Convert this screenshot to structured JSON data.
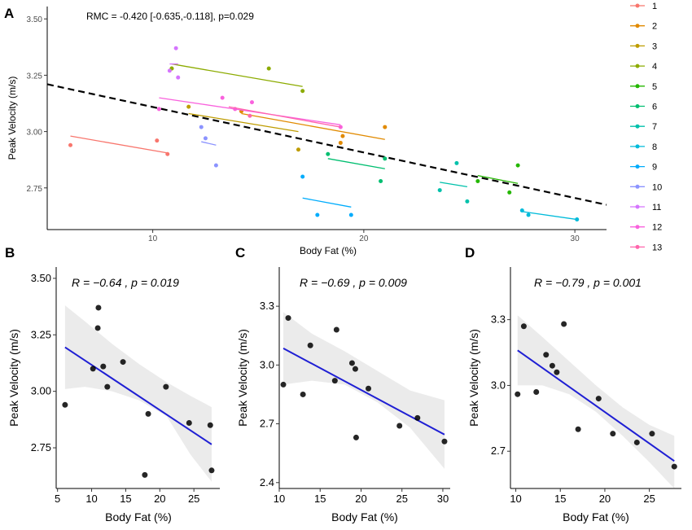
{
  "chart_data": [
    {
      "panel": "A",
      "type": "scatter",
      "title": "",
      "annotation": "RMC = -0.420 [-0.635,-0.118], p=0.029",
      "xlabel": "Body Fat (%)",
      "ylabel": "Peak Velocity (m/s)",
      "xlim": [
        5,
        31.5
      ],
      "ylim": [
        2.565,
        3.555
      ],
      "xticks": [
        "10",
        "20",
        "30"
      ],
      "yticks": [
        "2.75",
        "3.00",
        "3.25",
        "3.50"
      ],
      "grid": false,
      "legend": "right",
      "dashed_fit": {
        "x": [
          5,
          31.5
        ],
        "y": [
          3.21,
          2.675
        ]
      },
      "series": [
        {
          "name": "1",
          "color": "#F8766D",
          "points": [
            [
              6.1,
              2.94
            ],
            [
              10.2,
              2.96
            ],
            [
              10.7,
              2.9
            ]
          ],
          "fit": [
            [
              6.1,
              2.98
            ],
            [
              10.7,
              2.905
            ]
          ]
        },
        {
          "name": "2",
          "color": "#E18A00",
          "points": [
            [
              14.2,
              3.09
            ],
            [
              18.9,
              2.95
            ],
            [
              19.0,
              2.98
            ],
            [
              21.0,
              3.02
            ]
          ],
          "fit": [
            [
              14.2,
              3.08
            ],
            [
              21.0,
              2.965
            ]
          ]
        },
        {
          "name": "3",
          "color": "#BE9C00",
          "points": [
            [
              10.9,
              3.28
            ],
            [
              11.7,
              3.11
            ],
            [
              16.9,
              2.92
            ]
          ],
          "fit": [
            [
              11.7,
              3.08
            ],
            [
              16.9,
              3.0
            ]
          ]
        },
        {
          "name": "4",
          "color": "#8CAB00",
          "points": [
            [
              10.9,
              3.28
            ],
            [
              15.5,
              3.28
            ],
            [
              17.1,
              3.18
            ]
          ],
          "fit": [
            [
              10.9,
              3.3
            ],
            [
              17.1,
              3.2
            ]
          ]
        },
        {
          "name": "5",
          "color": "#24B700",
          "points": [
            [
              25.4,
              2.78
            ],
            [
              26.9,
              2.73
            ],
            [
              27.3,
              2.85
            ]
          ],
          "fit": [
            [
              25.4,
              2.805
            ],
            [
              27.3,
              2.77
            ]
          ]
        },
        {
          "name": "6",
          "color": "#00BE70",
          "points": [
            [
              18.3,
              2.9
            ],
            [
              20.8,
              2.78
            ],
            [
              21.0,
              2.88
            ]
          ],
          "fit": [
            [
              18.3,
              2.88
            ],
            [
              21.0,
              2.835
            ]
          ]
        },
        {
          "name": "7",
          "color": "#00C1AB",
          "points": [
            [
              23.6,
              2.74
            ],
            [
              24.4,
              2.86
            ],
            [
              24.9,
              2.69
            ]
          ],
          "fit": [
            [
              23.6,
              2.775
            ],
            [
              24.9,
              2.755
            ]
          ]
        },
        {
          "name": "8",
          "color": "#00BBDA",
          "points": [
            [
              27.5,
              2.65
            ],
            [
              27.8,
              2.63
            ],
            [
              30.1,
              2.61
            ]
          ],
          "fit": [
            [
              27.5,
              2.645
            ],
            [
              30.1,
              2.61
            ]
          ]
        },
        {
          "name": "9",
          "color": "#00ACFC",
          "points": [
            [
              17.1,
              2.8
            ],
            [
              17.8,
              2.63
            ],
            [
              19.4,
              2.63
            ]
          ],
          "fit": [
            [
              17.1,
              2.705
            ],
            [
              19.4,
              2.665
            ]
          ]
        },
        {
          "name": "10",
          "color": "#8B93FF",
          "points": [
            [
              12.3,
              3.02
            ],
            [
              12.5,
              2.97
            ],
            [
              13.0,
              2.85
            ]
          ],
          "fit": [
            [
              12.3,
              2.955
            ],
            [
              13.0,
              2.94
            ]
          ]
        },
        {
          "name": "11",
          "color": "#D575FE",
          "points": [
            [
              10.8,
              3.27
            ],
            [
              11.1,
              3.37
            ],
            [
              11.2,
              3.24
            ]
          ],
          "fit": [
            [
              10.8,
              3.3
            ],
            [
              11.2,
              3.3
            ]
          ]
        },
        {
          "name": "12",
          "color": "#F962DD",
          "points": [
            [
              10.3,
              3.1
            ],
            [
              13.3,
              3.15
            ],
            [
              13.9,
              3.1
            ],
            [
              14.7,
              3.13
            ],
            [
              18.9,
              3.02
            ]
          ],
          "fit": [
            [
              10.3,
              3.15
            ],
            [
              18.9,
              3.03
            ]
          ]
        },
        {
          "name": "13",
          "color": "#FF65AC",
          "points": [
            [
              14.6,
              3.07
            ]
          ],
          "fit": [
            [
              13.6,
              3.11
            ],
            [
              18.9,
              3.02
            ]
          ]
        }
      ]
    },
    {
      "panel": "B",
      "type": "scatter",
      "annotation": "R = −0.64 , p = 0.019",
      "xlabel": "Body Fat (%)",
      "ylabel": "Peak Velocity (m/s)",
      "xlim": [
        4.8,
        28.8
      ],
      "ylim": [
        2.57,
        3.55
      ],
      "xticks": [
        "5",
        "10",
        "15",
        "20",
        "25"
      ],
      "yticks": [
        "2.75",
        "3.00",
        "3.25",
        "3.50"
      ],
      "points": [
        [
          6.1,
          2.94
        ],
        [
          10.2,
          3.1
        ],
        [
          10.9,
          3.28
        ],
        [
          11.0,
          3.37
        ],
        [
          11.7,
          3.11
        ],
        [
          12.3,
          3.02
        ],
        [
          14.6,
          3.13
        ],
        [
          17.8,
          2.63
        ],
        [
          18.3,
          2.9
        ],
        [
          20.9,
          3.02
        ],
        [
          24.3,
          2.86
        ],
        [
          27.4,
          2.85
        ],
        [
          27.6,
          2.65
        ]
      ],
      "fit": [
        [
          6.1,
          3.195
        ],
        [
          27.6,
          2.765
        ]
      ],
      "ci_upper": [
        [
          6.1,
          3.38
        ],
        [
          9.0,
          3.31
        ],
        [
          13.0,
          3.21
        ],
        [
          17.0,
          3.12
        ],
        [
          21.0,
          3.04
        ],
        [
          24.5,
          2.98
        ],
        [
          27.6,
          2.93
        ]
      ],
      "ci_lower": [
        [
          6.1,
          3.01
        ],
        [
          9.0,
          3.02
        ],
        [
          13.0,
          3.0
        ],
        [
          17.0,
          2.96
        ],
        [
          21.0,
          2.89
        ],
        [
          24.5,
          2.72
        ],
        [
          27.6,
          2.6
        ]
      ]
    },
    {
      "panel": "C",
      "type": "scatter",
      "annotation": "R = −0.69 , p = 0.009",
      "xlabel": "Body Fat (%)",
      "ylabel": "Peak Velocity (m/s)",
      "xlim": [
        10.0,
        30.9
      ],
      "ylim": [
        2.37,
        3.5
      ],
      "xticks": [
        "10",
        "15",
        "20",
        "25",
        "30"
      ],
      "yticks": [
        "2.4",
        "2.7",
        "3.0",
        "3.3"
      ],
      "points": [
        [
          10.5,
          2.9
        ],
        [
          11.1,
          3.24
        ],
        [
          12.9,
          2.85
        ],
        [
          13.8,
          3.1
        ],
        [
          16.8,
          2.92
        ],
        [
          17.0,
          3.18
        ],
        [
          18.9,
          3.01
        ],
        [
          19.3,
          2.98
        ],
        [
          19.4,
          2.63
        ],
        [
          20.9,
          2.88
        ],
        [
          24.7,
          2.69
        ],
        [
          26.9,
          2.73
        ],
        [
          30.2,
          2.61
        ]
      ],
      "fit": [
        [
          10.5,
          3.085
        ],
        [
          30.2,
          2.645
        ]
      ],
      "ci_upper": [
        [
          10.5,
          3.27
        ],
        [
          14.0,
          3.16
        ],
        [
          18.0,
          3.07
        ],
        [
          22.0,
          2.97
        ],
        [
          26.0,
          2.87
        ],
        [
          30.2,
          2.82
        ]
      ],
      "ci_lower": [
        [
          10.5,
          2.9
        ],
        [
          14.0,
          2.92
        ],
        [
          18.0,
          2.9
        ],
        [
          22.0,
          2.81
        ],
        [
          26.0,
          2.68
        ],
        [
          30.2,
          2.47
        ]
      ]
    },
    {
      "panel": "D",
      "type": "scatter",
      "annotation": "R = −0.79 , p = 0.001",
      "xlabel": "Body Fat (%)",
      "ylabel": "Peak Velocity (m/s)",
      "xlim": [
        9.4,
        28.6
      ],
      "ylim": [
        2.53,
        3.54
      ],
      "xticks": [
        "10",
        "15",
        "20",
        "25"
      ],
      "yticks": [
        "2.7",
        "3.0",
        "3.3"
      ],
      "points": [
        [
          10.2,
          2.96
        ],
        [
          10.9,
          3.27
        ],
        [
          12.3,
          2.97
        ],
        [
          13.4,
          3.14
        ],
        [
          14.1,
          3.09
        ],
        [
          14.6,
          3.06
        ],
        [
          15.4,
          3.28
        ],
        [
          17.0,
          2.8
        ],
        [
          19.3,
          2.94
        ],
        [
          20.9,
          2.78
        ],
        [
          23.6,
          2.74
        ],
        [
          25.3,
          2.78
        ],
        [
          27.8,
          2.63
        ]
      ],
      "fit": [
        [
          10.2,
          3.16
        ],
        [
          27.8,
          2.655
        ]
      ],
      "ci_upper": [
        [
          10.2,
          3.32
        ],
        [
          13.0,
          3.22
        ],
        [
          16.0,
          3.11
        ],
        [
          19.0,
          3.0
        ],
        [
          22.0,
          2.9
        ],
        [
          25.0,
          2.82
        ],
        [
          27.8,
          2.77
        ]
      ],
      "ci_lower": [
        [
          10.2,
          3.0
        ],
        [
          13.0,
          3.0
        ],
        [
          16.0,
          2.96
        ],
        [
          19.0,
          2.88
        ],
        [
          22.0,
          2.77
        ],
        [
          25.0,
          2.65
        ],
        [
          27.8,
          2.53
        ]
      ]
    }
  ]
}
